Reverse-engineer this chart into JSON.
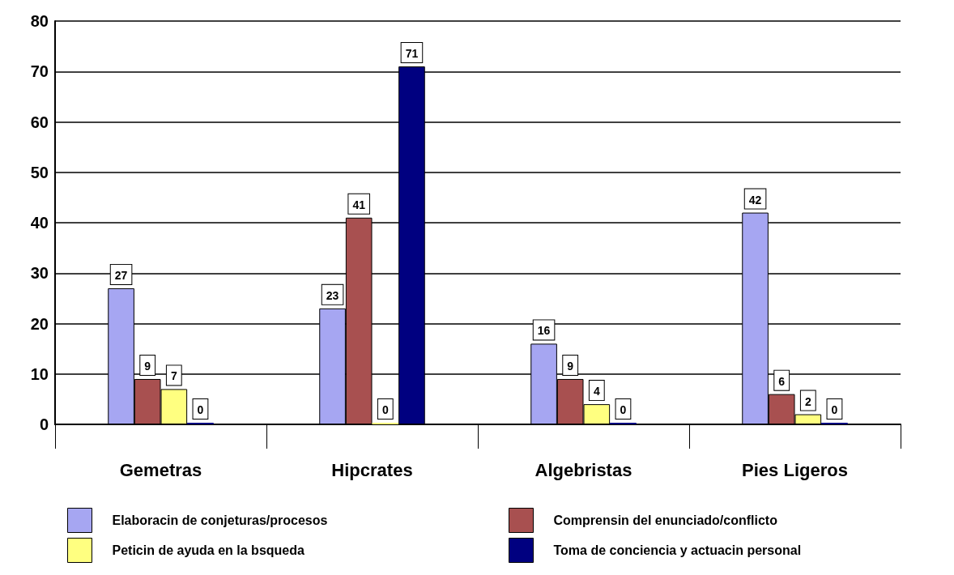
{
  "chart_data": {
    "type": "bar",
    "categories": [
      "Gemetras",
      "Hipcrates",
      "Algebristas",
      "Pies Ligeros"
    ],
    "series": [
      {
        "name": "Elaboracin de conjeturas/procesos",
        "color": "#a6a6f2",
        "values": [
          27,
          23,
          16,
          42
        ]
      },
      {
        "name": "Comprensin del enunciado/conflicto",
        "color": "#a85050",
        "values": [
          9,
          41,
          9,
          6
        ]
      },
      {
        "name": "Peticin de ayuda en la bsqueda",
        "color": "#ffff80",
        "values": [
          7,
          0,
          4,
          2
        ]
      },
      {
        "name": "Toma de conciencia y actuacin personal",
        "color": "#000080",
        "values": [
          0,
          71,
          0,
          0
        ]
      }
    ],
    "ylim": [
      0,
      80
    ],
    "yticks": [
      0,
      10,
      20,
      30,
      40,
      50,
      60,
      70,
      80
    ],
    "grid": "y",
    "legend": "bottom",
    "data_labels": true
  }
}
